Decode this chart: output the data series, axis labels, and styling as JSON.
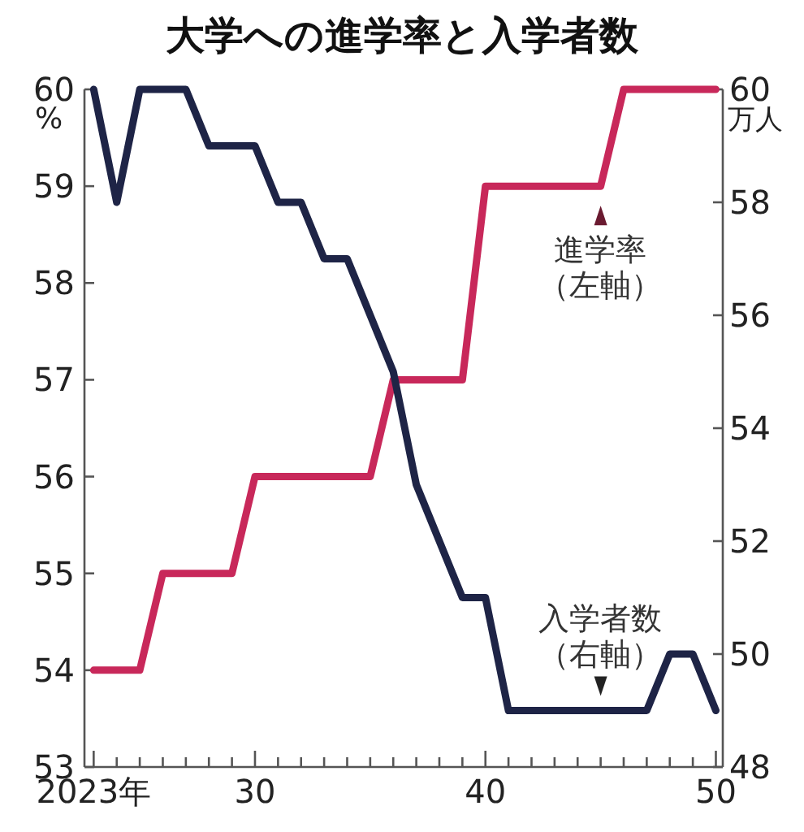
{
  "chart_data": {
    "type": "line",
    "title": "大学への進学率と入学者数",
    "ylabel": "%",
    "y2label": "万人",
    "x": [
      2023,
      2024,
      2025,
      2026,
      2027,
      2028,
      2029,
      2030,
      2031,
      2032,
      2033,
      2034,
      2035,
      2036,
      2037,
      2038,
      2039,
      2040,
      2041,
      2042,
      2043,
      2044,
      2045,
      2046,
      2047,
      2048,
      2049,
      2050
    ],
    "series": [
      {
        "color": "#c8285a",
        "values": [
          54,
          54,
          54,
          55,
          55,
          55,
          55,
          56,
          56,
          56,
          56,
          56,
          56,
          57,
          57,
          57,
          57,
          59,
          59,
          59,
          59,
          59,
          59,
          60,
          60,
          60,
          60,
          60
        ]
      },
      {
        "color": "#1e2446",
        "axis": "y2",
        "values": [
          60,
          58,
          60,
          60,
          60,
          59,
          59,
          59,
          58,
          58,
          57,
          57,
          56,
          55,
          53,
          52,
          51,
          51,
          49,
          49,
          49,
          49,
          49,
          49,
          49,
          50,
          50,
          49
        ]
      }
    ],
    "xlim": [
      2022.6,
      2050.3
    ],
    "xticks": [
      {
        "value": 2023,
        "label": "2023年"
      },
      {
        "value": 2024,
        "label": null
      },
      {
        "value": 2025,
        "label": null
      },
      {
        "value": 2026,
        "label": null
      },
      {
        "value": 2027,
        "label": null
      },
      {
        "value": 2028,
        "label": null
      },
      {
        "value": 2029,
        "label": null
      },
      {
        "value": 2030,
        "label": "30"
      },
      {
        "value": 2031,
        "label": null
      },
      {
        "value": 2032,
        "label": null
      },
      {
        "value": 2033,
        "label": null
      },
      {
        "value": 2034,
        "label": null
      },
      {
        "value": 2035,
        "label": null
      },
      {
        "value": 2036,
        "label": null
      },
      {
        "value": 2037,
        "label": null
      },
      {
        "value": 2038,
        "label": null
      },
      {
        "value": 2039,
        "label": null
      },
      {
        "value": 2040,
        "label": "40"
      },
      {
        "value": 2041,
        "label": null
      },
      {
        "value": 2042,
        "label": null
      },
      {
        "value": 2043,
        "label": null
      },
      {
        "value": 2044,
        "label": null
      },
      {
        "value": 2045,
        "label": null
      },
      {
        "value": 2046,
        "label": null
      },
      {
        "value": 2047,
        "label": null
      },
      {
        "value": 2048,
        "label": null
      },
      {
        "value": 2049,
        "label": null
      },
      {
        "value": 2050,
        "label": "50"
      }
    ],
    "ylim": [
      53,
      60
    ],
    "yticks": [
      53,
      54,
      55,
      56,
      57,
      58,
      59,
      60
    ],
    "y2lim": [
      48,
      60
    ],
    "y2ticks": [
      48,
      50,
      52,
      54,
      56,
      58,
      60
    ],
    "annotations": [
      {
        "text": "進学率（左軸）",
        "x": 2045,
        "y": 59
      },
      {
        "text": "入学者数（右軸）",
        "x": 2045,
        "y": 53.6
      }
    ]
  }
}
